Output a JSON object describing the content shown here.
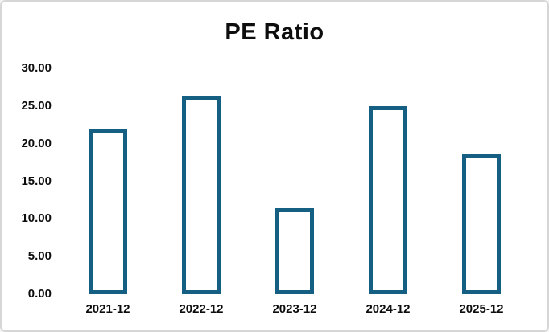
{
  "frame": {
    "background": "#ffffff",
    "border_color": "#d6d6d6"
  },
  "chart_data": {
    "type": "bar",
    "title": "PE Ratio",
    "categories": [
      "2021-12",
      "2022-12",
      "2023-12",
      "2024-12",
      "2025-12"
    ],
    "values": [
      21.9,
      26.3,
      11.4,
      25.0,
      18.7
    ],
    "xlabel": "",
    "ylabel": "",
    "ylim": [
      0,
      30
    ],
    "y_ticks": [
      30,
      25,
      20,
      15,
      10,
      5,
      0
    ],
    "y_tick_labels": [
      "30.00",
      "25.00",
      "20.00",
      "15.00",
      "10.00",
      "5.00",
      "0.00"
    ],
    "grid": false,
    "legend": false,
    "bar_fill": "#ffffff",
    "bar_stroke": "#156082",
    "text_color": "#0d0d0d"
  }
}
